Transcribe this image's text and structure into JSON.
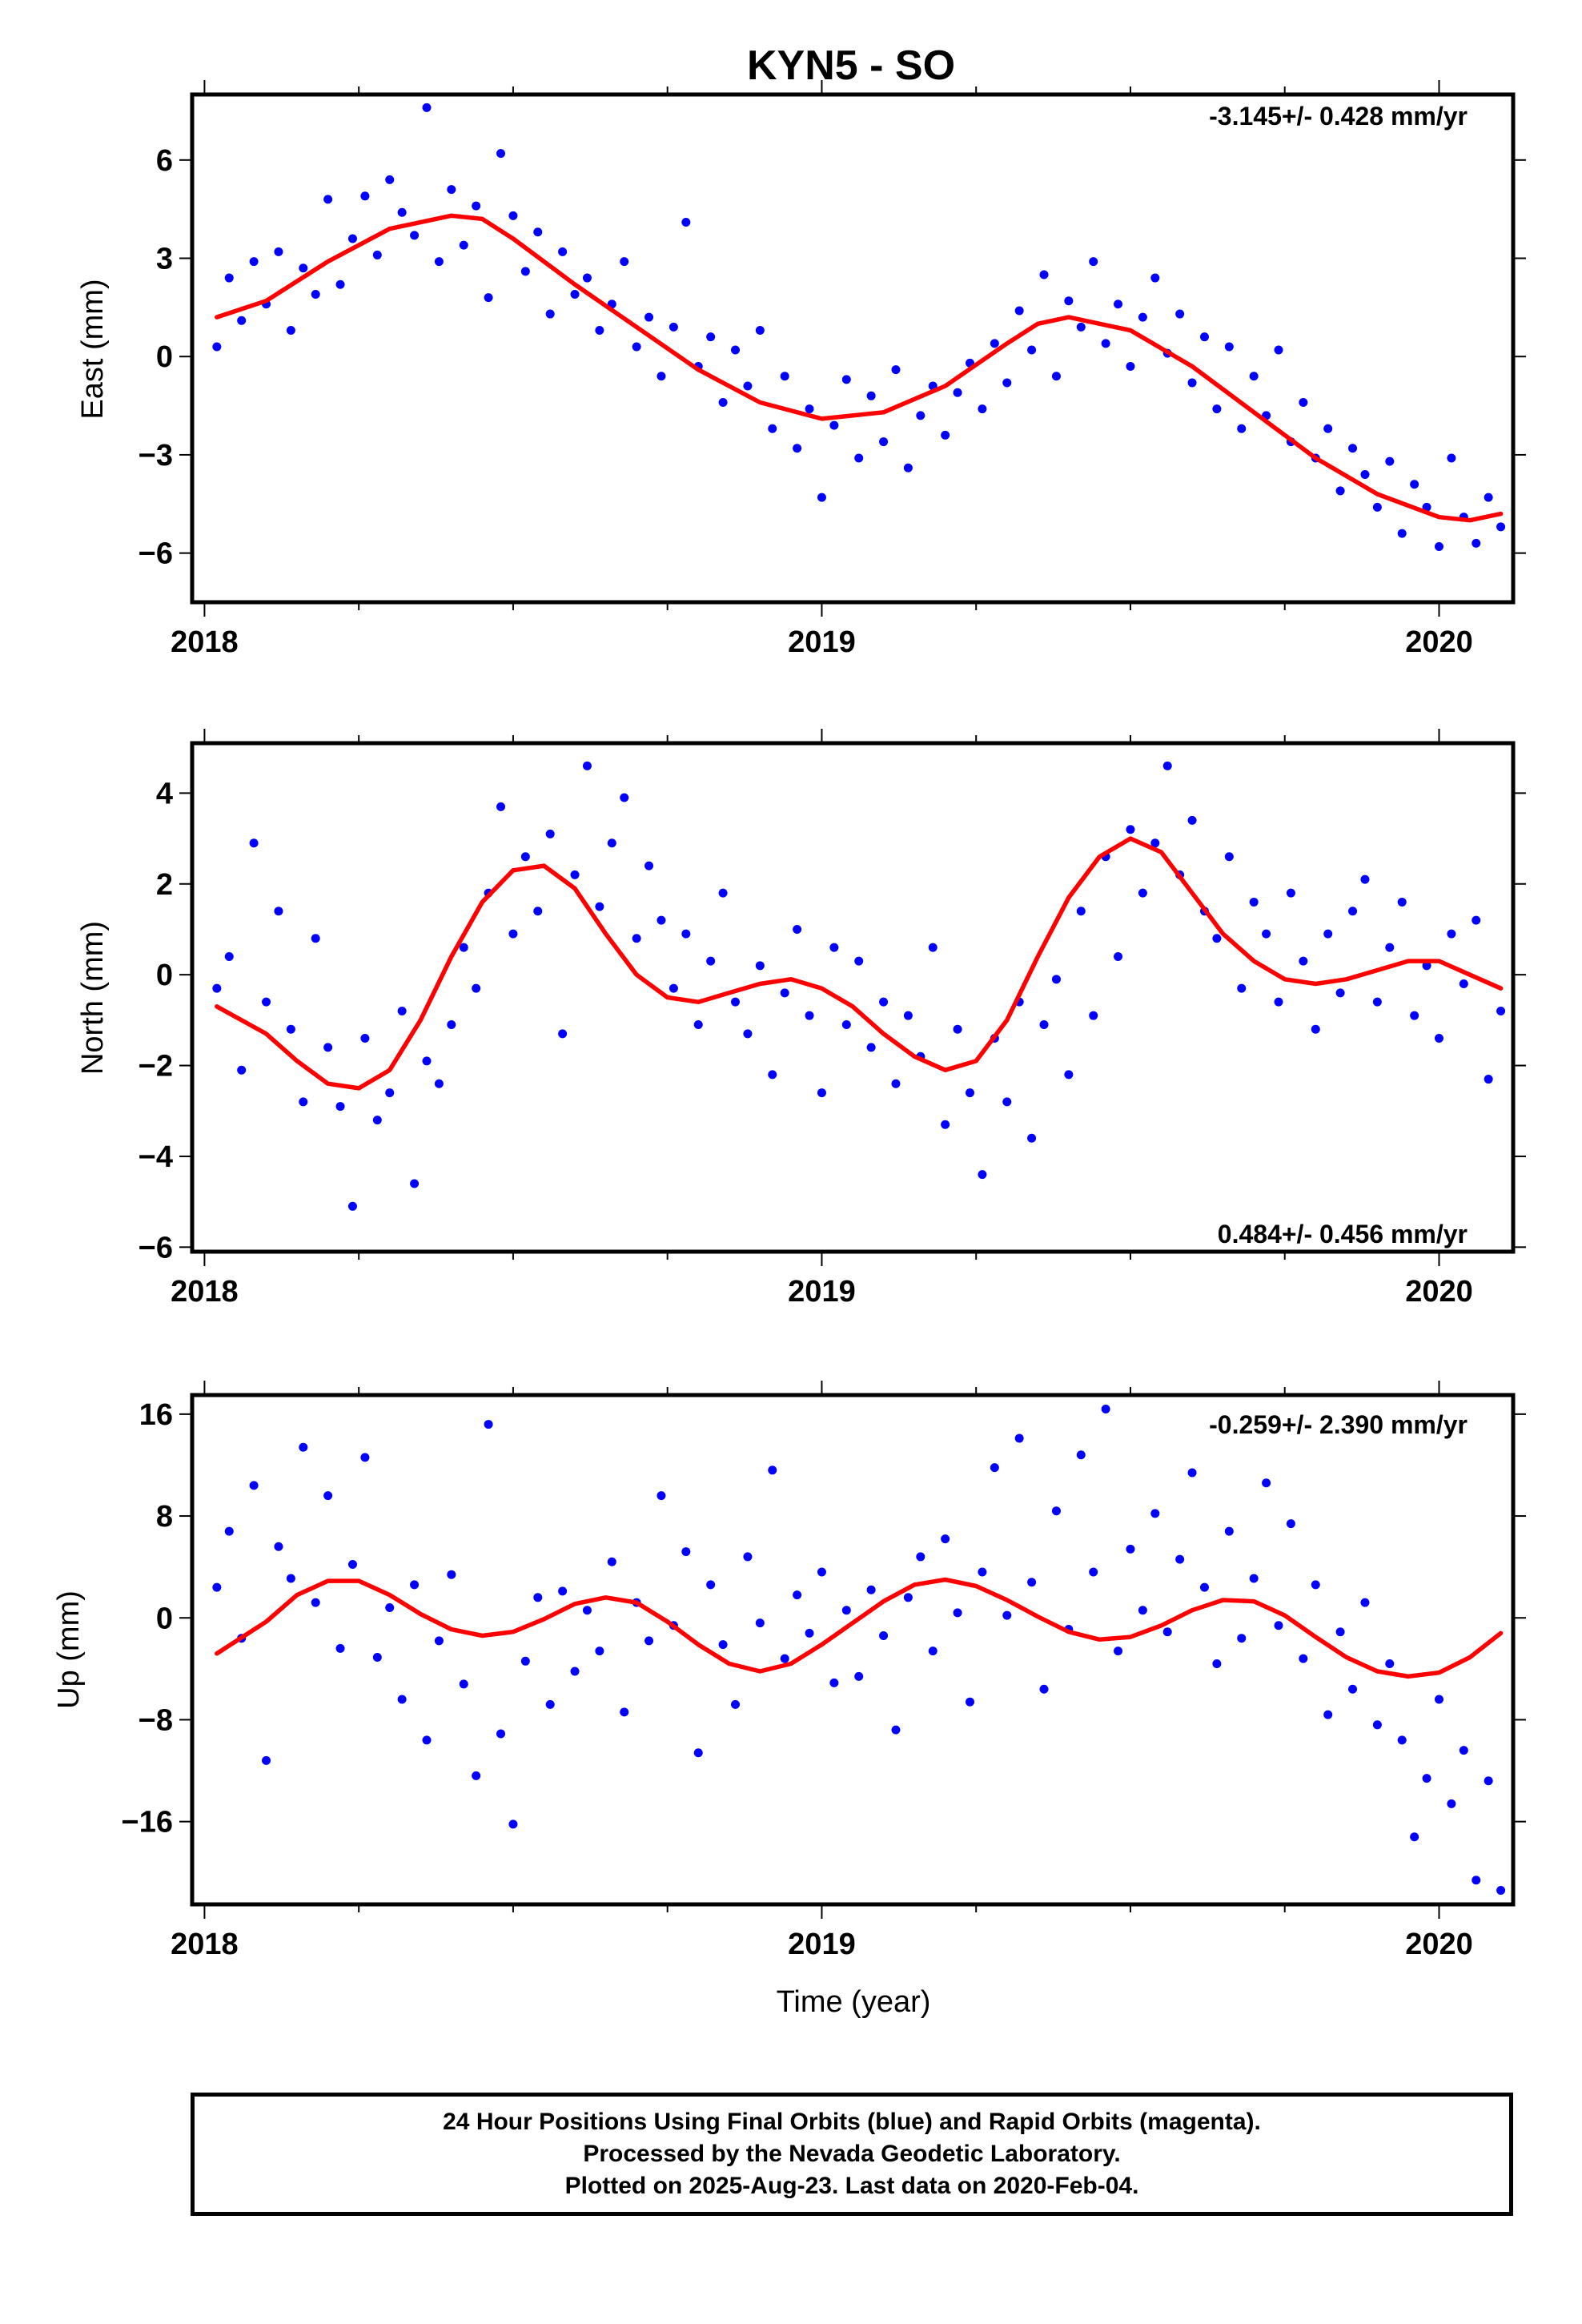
{
  "figure_title": "KYN5 - SO",
  "xlabel": "Time (year)",
  "colors": {
    "points": "#0000ff",
    "fit": "#ff0000",
    "frame": "#000000"
  },
  "footer": {
    "line1": "24 Hour Positions Using Final Orbits (blue) and Rapid Orbits (magenta).",
    "line2": "Processed by the Nevada Geodetic Laboratory.",
    "line3": "Plotted on 2025-Aug-23. Last data on 2020-Feb-04."
  },
  "chart_data": [
    {
      "type": "scatter",
      "ylabel": "East (mm)",
      "rate_label": "-3.145+/- 0.428 mm/yr",
      "rate_position": "top-right",
      "xlim": [
        2017.98,
        2020.12
      ],
      "ylim": [
        -7.5,
        8.0
      ],
      "x_ticks": [
        "2018",
        "2019",
        "2020"
      ],
      "y_ticks": [
        6,
        3,
        0,
        -3,
        -6
      ],
      "series": [
        {
          "style": "points",
          "x": [
            2018.02,
            2018.04,
            2018.06,
            2018.08,
            2018.1,
            2018.12,
            2018.14,
            2018.16,
            2018.18,
            2018.2,
            2018.22,
            2018.24,
            2018.26,
            2018.28,
            2018.3,
            2018.32,
            2018.34,
            2018.36,
            2018.38,
            2018.4,
            2018.42,
            2018.44,
            2018.46,
            2018.48,
            2018.5,
            2018.52,
            2018.54,
            2018.56,
            2018.58,
            2018.6,
            2018.62,
            2018.64,
            2018.66,
            2018.68,
            2018.7,
            2018.72,
            2018.74,
            2018.76,
            2018.78,
            2018.8,
            2018.82,
            2018.84,
            2018.86,
            2018.88,
            2018.9,
            2018.92,
            2018.94,
            2018.96,
            2018.98,
            2019.0,
            2019.02,
            2019.04,
            2019.06,
            2019.08,
            2019.1,
            2019.12,
            2019.14,
            2019.16,
            2019.18,
            2019.2,
            2019.22,
            2019.24,
            2019.26,
            2019.28,
            2019.3,
            2019.32,
            2019.34,
            2019.36,
            2019.38,
            2019.4,
            2019.42,
            2019.44,
            2019.46,
            2019.48,
            2019.5,
            2019.52,
            2019.54,
            2019.56,
            2019.58,
            2019.6,
            2019.62,
            2019.64,
            2019.66,
            2019.68,
            2019.7,
            2019.72,
            2019.74,
            2019.76,
            2019.78,
            2019.8,
            2019.82,
            2019.84,
            2019.86,
            2019.88,
            2019.9,
            2019.92,
            2019.94,
            2019.96,
            2019.98,
            2020.0,
            2020.02,
            2020.04,
            2020.06,
            2020.08,
            2020.1
          ],
          "y": [
            0.3,
            2.4,
            1.1,
            2.9,
            1.6,
            3.2,
            0.8,
            2.7,
            1.9,
            4.8,
            2.2,
            3.6,
            4.9,
            3.1,
            5.4,
            4.4,
            3.7,
            7.6,
            2.9,
            5.1,
            3.4,
            4.6,
            1.8,
            6.2,
            4.3,
            2.6,
            3.8,
            1.3,
            3.2,
            1.9,
            2.4,
            0.8,
            1.6,
            2.9,
            0.3,
            1.2,
            -0.6,
            0.9,
            4.1,
            -0.3,
            0.6,
            -1.4,
            0.2,
            -0.9,
            0.8,
            -2.2,
            -0.6,
            -2.8,
            -1.6,
            -4.3,
            -2.1,
            -0.7,
            -3.1,
            -1.2,
            -2.6,
            -0.4,
            -3.4,
            -1.8,
            -0.9,
            -2.4,
            -1.1,
            -0.2,
            -1.6,
            0.4,
            -0.8,
            1.4,
            0.2,
            2.5,
            -0.6,
            1.7,
            0.9,
            2.9,
            0.4,
            1.6,
            -0.3,
            1.2,
            2.4,
            0.1,
            1.3,
            -0.8,
            0.6,
            -1.6,
            0.3,
            -2.2,
            -0.6,
            -1.8,
            0.2,
            -2.6,
            -1.4,
            -3.1,
            -2.2,
            -4.1,
            -2.8,
            -3.6,
            -4.6,
            -3.2,
            -5.4,
            -3.9,
            -4.6,
            -5.8,
            -3.1,
            -4.9,
            -5.7,
            -4.3,
            -5.2
          ]
        },
        {
          "style": "line",
          "name": "",
          "x": [
            2018.02,
            2018.1,
            2018.2,
            2018.3,
            2018.4,
            2018.45,
            2018.5,
            2018.6,
            2018.7,
            2018.8,
            2018.9,
            2019.0,
            2019.1,
            2019.2,
            2019.3,
            2019.35,
            2019.4,
            2019.5,
            2019.6,
            2019.7,
            2019.8,
            2019.9,
            2020.0,
            2020.05,
            2020.1
          ],
          "y": [
            1.2,
            1.7,
            2.9,
            3.9,
            4.3,
            4.2,
            3.6,
            2.2,
            0.9,
            -0.4,
            -1.4,
            -1.9,
            -1.7,
            -0.9,
            0.4,
            1.0,
            1.2,
            0.8,
            -0.3,
            -1.7,
            -3.1,
            -4.2,
            -4.9,
            -5.0,
            -4.8
          ]
        }
      ]
    },
    {
      "type": "scatter",
      "ylabel": "North (mm)",
      "rate_label": "0.484+/- 0.456 mm/yr",
      "rate_position": "bottom-right",
      "xlim": [
        2017.98,
        2020.12
      ],
      "ylim": [
        -6.1,
        5.1
      ],
      "x_ticks": [
        "2018",
        "2019",
        "2020"
      ],
      "y_ticks": [
        4,
        2,
        0,
        -2,
        -4,
        -6
      ],
      "series": [
        {
          "style": "points",
          "x": [
            2018.02,
            2018.04,
            2018.06,
            2018.08,
            2018.1,
            2018.12,
            2018.14,
            2018.16,
            2018.18,
            2018.2,
            2018.22,
            2018.24,
            2018.26,
            2018.28,
            2018.3,
            2018.32,
            2018.34,
            2018.36,
            2018.38,
            2018.4,
            2018.42,
            2018.44,
            2018.46,
            2018.48,
            2018.5,
            2018.52,
            2018.54,
            2018.56,
            2018.58,
            2018.6,
            2018.62,
            2018.64,
            2018.66,
            2018.68,
            2018.7,
            2018.72,
            2018.74,
            2018.76,
            2018.78,
            2018.8,
            2018.82,
            2018.84,
            2018.86,
            2018.88,
            2018.9,
            2018.92,
            2018.94,
            2018.96,
            2018.98,
            2019.0,
            2019.02,
            2019.04,
            2019.06,
            2019.08,
            2019.1,
            2019.12,
            2019.14,
            2019.16,
            2019.18,
            2019.2,
            2019.22,
            2019.24,
            2019.26,
            2019.28,
            2019.3,
            2019.32,
            2019.34,
            2019.36,
            2019.38,
            2019.4,
            2019.42,
            2019.44,
            2019.46,
            2019.48,
            2019.5,
            2019.52,
            2019.54,
            2019.56,
            2019.58,
            2019.6,
            2019.62,
            2019.64,
            2019.66,
            2019.68,
            2019.7,
            2019.72,
            2019.74,
            2019.76,
            2019.78,
            2019.8,
            2019.82,
            2019.84,
            2019.86,
            2019.88,
            2019.9,
            2019.92,
            2019.94,
            2019.96,
            2019.98,
            2020.0,
            2020.02,
            2020.04,
            2020.06,
            2020.08,
            2020.1
          ],
          "y": [
            -0.3,
            0.4,
            -2.1,
            2.9,
            -0.6,
            1.4,
            -1.2,
            -2.8,
            0.8,
            -1.6,
            -2.9,
            -5.1,
            -1.4,
            -3.2,
            -2.6,
            -0.8,
            -4.6,
            -1.9,
            -2.4,
            -1.1,
            0.6,
            -0.3,
            1.8,
            3.7,
            0.9,
            2.6,
            1.4,
            3.1,
            -1.3,
            2.2,
            4.6,
            1.5,
            2.9,
            3.9,
            0.8,
            2.4,
            1.2,
            -0.3,
            0.9,
            -1.1,
            0.3,
            1.8,
            -0.6,
            -1.3,
            0.2,
            -2.2,
            -0.4,
            1.0,
            -0.9,
            -2.6,
            0.6,
            -1.1,
            0.3,
            -1.6,
            -0.6,
            -2.4,
            -0.9,
            -1.8,
            0.6,
            -3.3,
            -1.2,
            -2.6,
            -4.4,
            -1.4,
            -2.8,
            -0.6,
            -3.6,
            -1.1,
            -0.1,
            -2.2,
            1.4,
            -0.9,
            2.6,
            0.4,
            3.2,
            1.8,
            2.9,
            4.6,
            2.2,
            3.4,
            1.4,
            0.8,
            2.6,
            -0.3,
            1.6,
            0.9,
            -0.6,
            1.8,
            0.3,
            -1.2,
            0.9,
            -0.4,
            1.4,
            2.1,
            -0.6,
            0.6,
            1.6,
            -0.9,
            0.2,
            -1.4,
            0.9,
            -0.2,
            1.2,
            -2.3,
            -0.8
          ]
        },
        {
          "style": "line",
          "name": "",
          "x": [
            2018.02,
            2018.1,
            2018.15,
            2018.2,
            2018.25,
            2018.3,
            2018.35,
            2018.4,
            2018.45,
            2018.5,
            2018.55,
            2018.6,
            2018.65,
            2018.7,
            2018.75,
            2018.8,
            2018.85,
            2018.9,
            2018.95,
            2019.0,
            2019.05,
            2019.1,
            2019.15,
            2019.2,
            2019.25,
            2019.3,
            2019.35,
            2019.4,
            2019.45,
            2019.5,
            2019.55,
            2019.6,
            2019.65,
            2019.7,
            2019.75,
            2019.8,
            2019.85,
            2019.9,
            2019.95,
            2020.0,
            2020.05,
            2020.1
          ],
          "y": [
            -0.7,
            -1.3,
            -1.9,
            -2.4,
            -2.5,
            -2.1,
            -1.0,
            0.4,
            1.6,
            2.3,
            2.4,
            1.9,
            0.9,
            0.0,
            -0.5,
            -0.6,
            -0.4,
            -0.2,
            -0.1,
            -0.3,
            -0.7,
            -1.3,
            -1.8,
            -2.1,
            -1.9,
            -1.0,
            0.4,
            1.7,
            2.6,
            3.0,
            2.7,
            1.8,
            0.9,
            0.3,
            -0.1,
            -0.2,
            -0.1,
            0.1,
            0.3,
            0.3,
            0.0,
            -0.3
          ]
        }
      ]
    },
    {
      "type": "scatter",
      "ylabel": "Up (mm)",
      "rate_label": "-0.259+/- 2.390 mm/yr",
      "rate_position": "top-right",
      "xlim": [
        2017.98,
        2020.12
      ],
      "ylim": [
        -22.5,
        17.5
      ],
      "x_ticks": [
        "2018",
        "2019",
        "2020"
      ],
      "y_ticks": [
        16,
        8,
        0,
        -8,
        -16
      ],
      "series": [
        {
          "style": "points",
          "x": [
            2018.02,
            2018.04,
            2018.06,
            2018.08,
            2018.1,
            2018.12,
            2018.14,
            2018.16,
            2018.18,
            2018.2,
            2018.22,
            2018.24,
            2018.26,
            2018.28,
            2018.3,
            2018.32,
            2018.34,
            2018.36,
            2018.38,
            2018.4,
            2018.42,
            2018.44,
            2018.46,
            2018.48,
            2018.5,
            2018.52,
            2018.54,
            2018.56,
            2018.58,
            2018.6,
            2018.62,
            2018.64,
            2018.66,
            2018.68,
            2018.7,
            2018.72,
            2018.74,
            2018.76,
            2018.78,
            2018.8,
            2018.82,
            2018.84,
            2018.86,
            2018.88,
            2018.9,
            2018.92,
            2018.94,
            2018.96,
            2018.98,
            2019.0,
            2019.02,
            2019.04,
            2019.06,
            2019.08,
            2019.1,
            2019.12,
            2019.14,
            2019.16,
            2019.18,
            2019.2,
            2019.22,
            2019.24,
            2019.26,
            2019.28,
            2019.3,
            2019.32,
            2019.34,
            2019.36,
            2019.38,
            2019.4,
            2019.42,
            2019.44,
            2019.46,
            2019.48,
            2019.5,
            2019.52,
            2019.54,
            2019.56,
            2019.58,
            2019.6,
            2019.62,
            2019.64,
            2019.66,
            2019.68,
            2019.7,
            2019.72,
            2019.74,
            2019.76,
            2019.78,
            2019.8,
            2019.82,
            2019.84,
            2019.86,
            2019.88,
            2019.9,
            2019.92,
            2019.94,
            2019.96,
            2019.98,
            2020.0,
            2020.02,
            2020.04,
            2020.06,
            2020.08,
            2020.1
          ],
          "y": [
            2.4,
            6.8,
            -1.6,
            10.4,
            -11.2,
            5.6,
            3.1,
            13.4,
            1.2,
            9.6,
            -2.4,
            4.2,
            12.6,
            -3.1,
            0.8,
            -6.4,
            2.6,
            -9.6,
            -1.8,
            3.4,
            -5.2,
            -12.4,
            15.2,
            -9.1,
            -16.2,
            -3.4,
            1.6,
            -6.8,
            2.1,
            -4.2,
            0.6,
            -2.6,
            4.4,
            -7.4,
            1.2,
            -1.8,
            9.6,
            -0.6,
            5.2,
            -10.6,
            2.6,
            -2.1,
            -6.8,
            4.8,
            -0.4,
            11.6,
            -3.2,
            1.8,
            -1.2,
            3.6,
            -5.1,
            0.6,
            -4.6,
            2.2,
            -1.4,
            -8.8,
            1.6,
            4.8,
            -2.6,
            6.2,
            0.4,
            -6.6,
            3.6,
            11.8,
            0.2,
            14.1,
            2.8,
            -5.6,
            8.4,
            -0.9,
            12.8,
            3.6,
            16.4,
            -2.6,
            5.4,
            0.6,
            8.2,
            -1.1,
            4.6,
            11.4,
            2.4,
            -3.6,
            6.8,
            -1.6,
            3.1,
            10.6,
            -0.6,
            7.4,
            -3.2,
            2.6,
            -7.6,
            -1.1,
            -5.6,
            1.2,
            -8.4,
            -3.6,
            -9.6,
            -17.2,
            -12.6,
            -6.4,
            -14.6,
            -10.4,
            -20.6,
            -12.8,
            -21.4
          ]
        },
        {
          "style": "line",
          "name": "",
          "x": [
            2018.02,
            2018.1,
            2018.15,
            2018.2,
            2018.25,
            2018.3,
            2018.35,
            2018.4,
            2018.45,
            2018.5,
            2018.55,
            2018.6,
            2018.65,
            2018.7,
            2018.75,
            2018.8,
            2018.85,
            2018.9,
            2018.95,
            2019.0,
            2019.05,
            2019.1,
            2019.15,
            2019.2,
            2019.25,
            2019.3,
            2019.35,
            2019.4,
            2019.45,
            2019.5,
            2019.55,
            2019.6,
            2019.65,
            2019.7,
            2019.75,
            2019.8,
            2019.85,
            2019.9,
            2019.95,
            2020.0,
            2020.05,
            2020.1
          ],
          "y": [
            -2.8,
            -0.3,
            1.8,
            2.9,
            2.9,
            1.8,
            0.3,
            -0.9,
            -1.4,
            -1.1,
            -0.1,
            1.1,
            1.6,
            1.2,
            -0.3,
            -2.1,
            -3.6,
            -4.2,
            -3.6,
            -2.1,
            -0.4,
            1.3,
            2.6,
            3.0,
            2.5,
            1.4,
            0.1,
            -1.1,
            -1.7,
            -1.5,
            -0.6,
            0.6,
            1.4,
            1.3,
            0.2,
            -1.5,
            -3.1,
            -4.2,
            -4.6,
            -4.3,
            -3.1,
            -1.2
          ]
        }
      ]
    }
  ]
}
